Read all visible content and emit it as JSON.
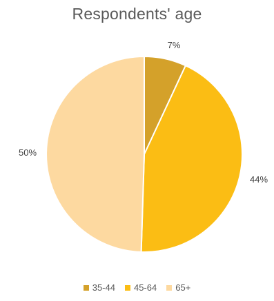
{
  "chart_data": {
    "type": "pie",
    "title": "Respondents' age",
    "categories": [
      "35-44",
      "45-64",
      "65+"
    ],
    "values": [
      7,
      44,
      50
    ],
    "data_labels": [
      "7%",
      "44%",
      "50%"
    ],
    "colors": [
      "#D4A12A",
      "#FBBD14",
      "#FDD9A0"
    ],
    "legend_position": "bottom"
  }
}
